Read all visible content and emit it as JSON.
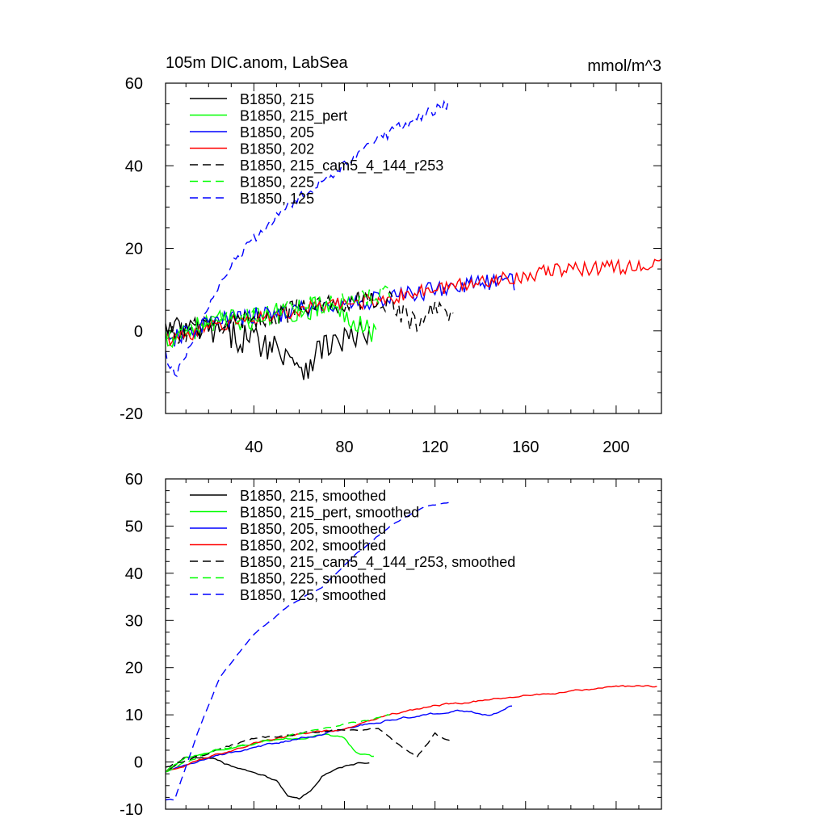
{
  "chart_data": [
    {
      "id": "top",
      "type": "line",
      "title": "105m DIC.anom, LabSea",
      "units": "mmol/m^3",
      "xlim": [
        1,
        220
      ],
      "ylim": [
        -20,
        60
      ],
      "yticks": [
        "60",
        "40",
        "20",
        "0",
        "-20"
      ],
      "xticks": [
        "40",
        "80",
        "120",
        "160",
        "200"
      ],
      "grid": false,
      "legend_position": "top-left",
      "series": [
        {
          "name": "B1850, 215",
          "color": "#000000",
          "dash": "solid",
          "length": 91,
          "noise": 3.8,
          "trend": [
            [
              1,
              0
            ],
            [
              20,
              0
            ],
            [
              40,
              -2
            ],
            [
              55,
              -5
            ],
            [
              62,
              -9
            ],
            [
              70,
              -4
            ],
            [
              80,
              -2
            ],
            [
              91,
              -1
            ]
          ]
        },
        {
          "name": "B1850, 215_pert",
          "color": "#00ff00",
          "dash": "solid",
          "length": 94,
          "noise": 2.8,
          "trend": [
            [
              1,
              -2
            ],
            [
              20,
              2
            ],
            [
              40,
              3
            ],
            [
              60,
              5
            ],
            [
              70,
              6
            ],
            [
              80,
              4
            ],
            [
              88,
              2
            ],
            [
              94,
              -1
            ]
          ]
        },
        {
          "name": "B1850, 205",
          "color": "#0000ff",
          "dash": "solid",
          "length": 155,
          "noise": 2.2,
          "trend": [
            [
              1,
              -3
            ],
            [
              20,
              2
            ],
            [
              60,
              5
            ],
            [
              100,
              8
            ],
            [
              130,
              11
            ],
            [
              155,
              12
            ]
          ]
        },
        {
          "name": "B1850, 202",
          "color": "#ff0000",
          "dash": "solid",
          "length": 220,
          "noise": 1.8,
          "trend": [
            [
              1,
              -2
            ],
            [
              30,
              2
            ],
            [
              60,
              5
            ],
            [
              100,
              8
            ],
            [
              140,
              12
            ],
            [
              180,
              15
            ],
            [
              220,
              16
            ]
          ]
        },
        {
          "name": "B1850, 215_cam5_4_144_r253",
          "color": "#000000",
          "dash": "dashed",
          "length": 128,
          "noise": 2.8,
          "trend": [
            [
              1,
              -1
            ],
            [
              30,
              2
            ],
            [
              60,
              5
            ],
            [
              90,
              8
            ],
            [
              100,
              7
            ],
            [
              112,
              1
            ],
            [
              120,
              6
            ],
            [
              128,
              3
            ]
          ]
        },
        {
          "name": "B1850, 225",
          "color": "#00ff00",
          "dash": "dashed",
          "length": 100,
          "noise": 2.2,
          "trend": [
            [
              1,
              -2
            ],
            [
              30,
              3
            ],
            [
              60,
              6
            ],
            [
              80,
              7
            ],
            [
              100,
              9
            ]
          ]
        },
        {
          "name": "B1850, 125",
          "color": "#0000ff",
          "dash": "dashed",
          "length": 126,
          "noise": 1.3,
          "trend": [
            [
              1,
              -6
            ],
            [
              5,
              -11
            ],
            [
              15,
              0
            ],
            [
              30,
              16
            ],
            [
              50,
              28
            ],
            [
              70,
              36
            ],
            [
              90,
              45
            ],
            [
              110,
              51
            ],
            [
              126,
              55
            ]
          ]
        }
      ]
    },
    {
      "id": "bottom",
      "type": "line",
      "title": "",
      "units": "",
      "xlim": [
        1,
        220
      ],
      "ylim": [
        -10,
        60
      ],
      "yticks": [
        "60",
        "50",
        "40",
        "30",
        "20",
        "10",
        "0",
        "-10"
      ],
      "xticks": [],
      "grid": false,
      "legend_position": "top-left",
      "series": [
        {
          "name": "B1850, 215, smoothed",
          "color": "#000000",
          "dash": "solid",
          "length": 91,
          "noise": 0.6,
          "trend": [
            [
              1,
              -2
            ],
            [
              10,
              1
            ],
            [
              20,
              1
            ],
            [
              30,
              -1
            ],
            [
              40,
              -2
            ],
            [
              50,
              -4
            ],
            [
              55,
              -7
            ],
            [
              60,
              -8
            ],
            [
              65,
              -6
            ],
            [
              70,
              -3
            ],
            [
              75,
              -2
            ],
            [
              80,
              -1
            ],
            [
              91,
              0
            ]
          ]
        },
        {
          "name": "B1850, 215_pert, smoothed",
          "color": "#00ff00",
          "dash": "solid",
          "length": 93,
          "noise": 0.6,
          "trend": [
            [
              1,
              -2
            ],
            [
              10,
              1
            ],
            [
              20,
              2
            ],
            [
              30,
              3
            ],
            [
              40,
              4
            ],
            [
              50,
              5
            ],
            [
              60,
              5
            ],
            [
              70,
              6
            ],
            [
              80,
              5
            ],
            [
              85,
              2
            ],
            [
              93,
              1
            ]
          ]
        },
        {
          "name": "B1850, 205, smoothed",
          "color": "#0000ff",
          "dash": "solid",
          "length": 154,
          "noise": 0.6,
          "trend": [
            [
              1,
              -2
            ],
            [
              20,
              1
            ],
            [
              40,
              3
            ],
            [
              60,
              5
            ],
            [
              80,
              7
            ],
            [
              100,
              9
            ],
            [
              115,
              10
            ],
            [
              130,
              11
            ],
            [
              145,
              10
            ],
            [
              154,
              12
            ]
          ]
        },
        {
          "name": "B1850, 202, smoothed",
          "color": "#ff0000",
          "dash": "solid",
          "length": 218,
          "noise": 0.5,
          "trend": [
            [
              1,
              -2
            ],
            [
              20,
              1
            ],
            [
              40,
              4
            ],
            [
              60,
              6
            ],
            [
              80,
              7
            ],
            [
              100,
              10
            ],
            [
              120,
              12
            ],
            [
              140,
              13
            ],
            [
              160,
              14
            ],
            [
              180,
              15
            ],
            [
              200,
              16
            ],
            [
              218,
              16
            ]
          ]
        },
        {
          "name": "B1850, 215_cam5_4_144_r253, smoothed",
          "color": "#000000",
          "dash": "dashed",
          "length": 128,
          "noise": 0.6,
          "trend": [
            [
              1,
              -1
            ],
            [
              20,
              2
            ],
            [
              40,
              5
            ],
            [
              60,
              6
            ],
            [
              80,
              7
            ],
            [
              95,
              7
            ],
            [
              105,
              3
            ],
            [
              112,
              1
            ],
            [
              120,
              6
            ],
            [
              128,
              4
            ]
          ]
        },
        {
          "name": "B1850, 225, smoothed",
          "color": "#00ff00",
          "dash": "dashed",
          "length": 100,
          "noise": 0.6,
          "trend": [
            [
              1,
              -2
            ],
            [
              20,
              2
            ],
            [
              40,
              4
            ],
            [
              60,
              6
            ],
            [
              80,
              8
            ],
            [
              100,
              10
            ]
          ]
        },
        {
          "name": "B1850, 125, smoothed",
          "color": "#0000ff",
          "dash": "dashed",
          "length": 126,
          "noise": 0.3,
          "trend": [
            [
              1,
              -8
            ],
            [
              5,
              -8
            ],
            [
              15,
              6
            ],
            [
              25,
              18
            ],
            [
              40,
              27
            ],
            [
              55,
              33
            ],
            [
              70,
              37
            ],
            [
              85,
              44
            ],
            [
              100,
              50
            ],
            [
              115,
              54
            ],
            [
              126,
              55
            ]
          ]
        }
      ]
    }
  ]
}
